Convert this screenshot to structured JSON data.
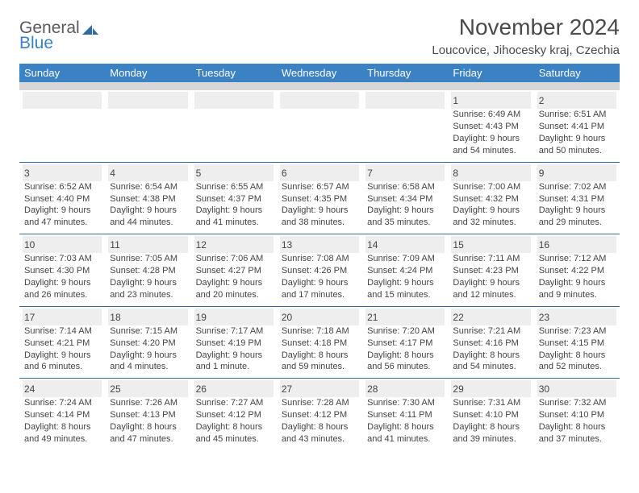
{
  "logo": {
    "general": "General",
    "blue": "Blue"
  },
  "title": "November 2024",
  "location": "Loucovice, Jihocesky kraj, Czechia",
  "colors": {
    "header_bg": "#3b82c4",
    "subhead_bg": "#d7d7d7",
    "border": "#2f6aa0",
    "daynum_bg": "#eeeeee"
  },
  "weekdays": [
    "Sunday",
    "Monday",
    "Tuesday",
    "Wednesday",
    "Thursday",
    "Friday",
    "Saturday"
  ],
  "weeks": [
    [
      null,
      null,
      null,
      null,
      null,
      {
        "n": "1",
        "sr": "6:49 AM",
        "ss": "4:43 PM",
        "dl": "9 hours and 54 minutes."
      },
      {
        "n": "2",
        "sr": "6:51 AM",
        "ss": "4:41 PM",
        "dl": "9 hours and 50 minutes."
      }
    ],
    [
      {
        "n": "3",
        "sr": "6:52 AM",
        "ss": "4:40 PM",
        "dl": "9 hours and 47 minutes."
      },
      {
        "n": "4",
        "sr": "6:54 AM",
        "ss": "4:38 PM",
        "dl": "9 hours and 44 minutes."
      },
      {
        "n": "5",
        "sr": "6:55 AM",
        "ss": "4:37 PM",
        "dl": "9 hours and 41 minutes."
      },
      {
        "n": "6",
        "sr": "6:57 AM",
        "ss": "4:35 PM",
        "dl": "9 hours and 38 minutes."
      },
      {
        "n": "7",
        "sr": "6:58 AM",
        "ss": "4:34 PM",
        "dl": "9 hours and 35 minutes."
      },
      {
        "n": "8",
        "sr": "7:00 AM",
        "ss": "4:32 PM",
        "dl": "9 hours and 32 minutes."
      },
      {
        "n": "9",
        "sr": "7:02 AM",
        "ss": "4:31 PM",
        "dl": "9 hours and 29 minutes."
      }
    ],
    [
      {
        "n": "10",
        "sr": "7:03 AM",
        "ss": "4:30 PM",
        "dl": "9 hours and 26 minutes."
      },
      {
        "n": "11",
        "sr": "7:05 AM",
        "ss": "4:28 PM",
        "dl": "9 hours and 23 minutes."
      },
      {
        "n": "12",
        "sr": "7:06 AM",
        "ss": "4:27 PM",
        "dl": "9 hours and 20 minutes."
      },
      {
        "n": "13",
        "sr": "7:08 AM",
        "ss": "4:26 PM",
        "dl": "9 hours and 17 minutes."
      },
      {
        "n": "14",
        "sr": "7:09 AM",
        "ss": "4:24 PM",
        "dl": "9 hours and 15 minutes."
      },
      {
        "n": "15",
        "sr": "7:11 AM",
        "ss": "4:23 PM",
        "dl": "9 hours and 12 minutes."
      },
      {
        "n": "16",
        "sr": "7:12 AM",
        "ss": "4:22 PM",
        "dl": "9 hours and 9 minutes."
      }
    ],
    [
      {
        "n": "17",
        "sr": "7:14 AM",
        "ss": "4:21 PM",
        "dl": "9 hours and 6 minutes."
      },
      {
        "n": "18",
        "sr": "7:15 AM",
        "ss": "4:20 PM",
        "dl": "9 hours and 4 minutes."
      },
      {
        "n": "19",
        "sr": "7:17 AM",
        "ss": "4:19 PM",
        "dl": "9 hours and 1 minute."
      },
      {
        "n": "20",
        "sr": "7:18 AM",
        "ss": "4:18 PM",
        "dl": "8 hours and 59 minutes."
      },
      {
        "n": "21",
        "sr": "7:20 AM",
        "ss": "4:17 PM",
        "dl": "8 hours and 56 minutes."
      },
      {
        "n": "22",
        "sr": "7:21 AM",
        "ss": "4:16 PM",
        "dl": "8 hours and 54 minutes."
      },
      {
        "n": "23",
        "sr": "7:23 AM",
        "ss": "4:15 PM",
        "dl": "8 hours and 52 minutes."
      }
    ],
    [
      {
        "n": "24",
        "sr": "7:24 AM",
        "ss": "4:14 PM",
        "dl": "8 hours and 49 minutes."
      },
      {
        "n": "25",
        "sr": "7:26 AM",
        "ss": "4:13 PM",
        "dl": "8 hours and 47 minutes."
      },
      {
        "n": "26",
        "sr": "7:27 AM",
        "ss": "4:12 PM",
        "dl": "8 hours and 45 minutes."
      },
      {
        "n": "27",
        "sr": "7:28 AM",
        "ss": "4:12 PM",
        "dl": "8 hours and 43 minutes."
      },
      {
        "n": "28",
        "sr": "7:30 AM",
        "ss": "4:11 PM",
        "dl": "8 hours and 41 minutes."
      },
      {
        "n": "29",
        "sr": "7:31 AM",
        "ss": "4:10 PM",
        "dl": "8 hours and 39 minutes."
      },
      {
        "n": "30",
        "sr": "7:32 AM",
        "ss": "4:10 PM",
        "dl": "8 hours and 37 minutes."
      }
    ]
  ],
  "labels": {
    "sunrise": "Sunrise:",
    "sunset": "Sunset:",
    "daylight": "Daylight:"
  }
}
